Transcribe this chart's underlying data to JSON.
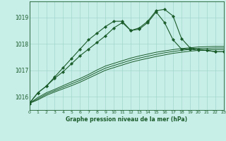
{
  "title": "Graphe pression niveau de la mer (hPa)",
  "background_color": "#c8eee8",
  "grid_color": "#a0d8cc",
  "line_color": "#1a5c2a",
  "xlim": [
    0,
    23
  ],
  "ylim": [
    1015.5,
    1019.6
  ],
  "yticks": [
    1016,
    1017,
    1018,
    1019
  ],
  "xtick_labels": [
    "0",
    "1",
    "2",
    "3",
    "4",
    "5",
    "6",
    "7",
    "8",
    "9",
    "10",
    "11",
    "12",
    "13",
    "14",
    "15",
    "16",
    "17",
    "18",
    "19",
    "20",
    "21",
    "22",
    "23"
  ],
  "series_main": [
    1015.75,
    1016.15,
    1016.4,
    1016.75,
    1017.1,
    1017.45,
    1017.8,
    1018.15,
    1018.4,
    1018.65,
    1018.85,
    1018.85,
    1018.5,
    1018.6,
    1018.85,
    1019.25,
    1019.3,
    1019.05,
    1018.2,
    1017.85,
    1017.8,
    1017.75,
    1017.7,
    1017.7
  ],
  "series_second": [
    1015.75,
    1016.15,
    1016.4,
    1016.7,
    1016.95,
    1017.25,
    1017.55,
    1017.8,
    1018.05,
    1018.3,
    1018.6,
    1018.8,
    1018.5,
    1018.55,
    1018.8,
    1019.2,
    1018.8,
    1018.15,
    1017.8,
    1017.8,
    1017.75,
    1017.75,
    1017.7,
    1017.7
  ],
  "smooth1": [
    1015.75,
    1015.88,
    1016.05,
    1016.18,
    1016.3,
    1016.42,
    1016.55,
    1016.7,
    1016.85,
    1017.0,
    1017.1,
    1017.2,
    1017.3,
    1017.38,
    1017.45,
    1017.52,
    1017.58,
    1017.64,
    1017.68,
    1017.72,
    1017.75,
    1017.77,
    1017.78,
    1017.78
  ],
  "smooth2": [
    1015.75,
    1015.92,
    1016.1,
    1016.23,
    1016.36,
    1016.49,
    1016.62,
    1016.77,
    1016.93,
    1017.08,
    1017.18,
    1017.28,
    1017.38,
    1017.46,
    1017.53,
    1017.6,
    1017.66,
    1017.71,
    1017.75,
    1017.79,
    1017.82,
    1017.83,
    1017.84,
    1017.84
  ],
  "smooth3": [
    1015.75,
    1015.97,
    1016.15,
    1016.28,
    1016.42,
    1016.56,
    1016.69,
    1016.84,
    1017.01,
    1017.16,
    1017.26,
    1017.36,
    1017.46,
    1017.54,
    1017.61,
    1017.68,
    1017.73,
    1017.78,
    1017.82,
    1017.85,
    1017.88,
    1017.89,
    1017.9,
    1017.9
  ]
}
